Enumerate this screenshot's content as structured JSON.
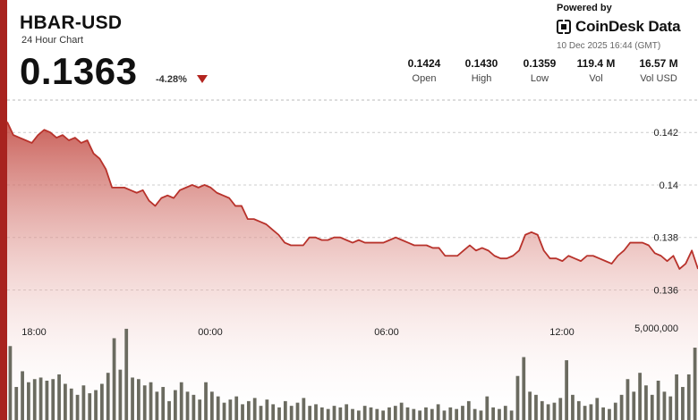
{
  "header": {
    "ticker": "HBAR-USD",
    "subtitle": "24 Hour Chart",
    "price": "0.1363",
    "change": "-4.28%",
    "powered_by": "Powered by",
    "brand": "CoinDesk Data",
    "timestamp": "10 Dec 2025 16:44 (GMT)",
    "accent_color": "#a8231f"
  },
  "stats": [
    {
      "value": "0.1424",
      "label": "Open"
    },
    {
      "value": "0.1430",
      "label": "High"
    },
    {
      "value": "0.1359",
      "label": "Low"
    },
    {
      "value": "119.4 M",
      "label": "Vol"
    },
    {
      "value": "16.57 M",
      "label": "Vol USD"
    }
  ],
  "chart_data": {
    "type": "area",
    "x_ticks": [
      "18:00",
      "00:00",
      "06:00",
      "12:00"
    ],
    "y_ticks": [
      0.142,
      0.14,
      0.138,
      0.136
    ],
    "y_tick_labels": [
      "0.142",
      "0.14",
      "0.138",
      "0.136"
    ],
    "ylim": [
      0.1353,
      0.1433
    ],
    "volume_tick_label": "5,000,000",
    "line_color": "#b8322b",
    "price_series": [
      0.1424,
      0.1419,
      0.1418,
      0.1417,
      0.1416,
      0.1419,
      0.1421,
      0.142,
      0.1418,
      0.1419,
      0.1417,
      0.1418,
      0.1416,
      0.1417,
      0.1412,
      0.141,
      0.1406,
      0.1399,
      0.1399,
      0.1399,
      0.1398,
      0.1397,
      0.1398,
      0.1394,
      0.1392,
      0.1395,
      0.1396,
      0.1395,
      0.1398,
      0.1399,
      0.14,
      0.1399,
      0.14,
      0.1399,
      0.1397,
      0.1396,
      0.1395,
      0.1392,
      0.1392,
      0.1387,
      0.1387,
      0.1386,
      0.1385,
      0.1383,
      0.1381,
      0.1378,
      0.1377,
      0.1377,
      0.1377,
      0.138,
      0.138,
      0.1379,
      0.1379,
      0.138,
      0.138,
      0.1379,
      0.1378,
      0.1379,
      0.1378,
      0.1378,
      0.1378,
      0.1378,
      0.1379,
      0.138,
      0.1379,
      0.1378,
      0.1377,
      0.1377,
      0.1377,
      0.1376,
      0.1376,
      0.1373,
      0.1373,
      0.1373,
      0.1375,
      0.1377,
      0.1375,
      0.1376,
      0.1375,
      0.1373,
      0.1372,
      0.1372,
      0.1373,
      0.1375,
      0.1381,
      0.1382,
      0.1381,
      0.1375,
      0.1372,
      0.1372,
      0.1371,
      0.1373,
      0.1372,
      0.1371,
      0.1373,
      0.1373,
      0.1372,
      0.1371,
      0.137,
      0.1373,
      0.1375,
      0.1378,
      0.1378,
      0.1378,
      0.1377,
      0.1374,
      0.1373,
      0.1371,
      0.1373,
      0.1368,
      0.137,
      0.1375,
      0.1368
    ],
    "volume_series": [
      4700000,
      2100000,
      3100000,
      2400000,
      2600000,
      2700000,
      2500000,
      2600000,
      2900000,
      2300000,
      2000000,
      1600000,
      2200000,
      1700000,
      1900000,
      2300000,
      3000000,
      5200000,
      3200000,
      5800000,
      2700000,
      2600000,
      2200000,
      2400000,
      1800000,
      2100000,
      1200000,
      1900000,
      2400000,
      1800000,
      1600000,
      1300000,
      2400000,
      1800000,
      1500000,
      1100000,
      1300000,
      1500000,
      1000000,
      1200000,
      1400000,
      900000,
      1300000,
      1000000,
      800000,
      1200000,
      900000,
      1100000,
      1400000,
      900000,
      1000000,
      800000,
      700000,
      900000,
      800000,
      1000000,
      700000,
      600000,
      900000,
      800000,
      700000,
      600000,
      800000,
      900000,
      1100000,
      800000,
      700000,
      600000,
      800000,
      700000,
      1000000,
      600000,
      800000,
      700000,
      900000,
      1200000,
      700000,
      600000,
      1500000,
      800000,
      700000,
      900000,
      600000,
      2800000,
      4000000,
      1800000,
      1600000,
      1200000,
      1000000,
      1100000,
      1400000,
      3800000,
      1600000,
      1200000,
      900000,
      1000000,
      1400000,
      800000,
      700000,
      1100000,
      1600000,
      2600000,
      1800000,
      3000000,
      2200000,
      1600000,
      2500000,
      1800000,
      1500000,
      2900000,
      2100000,
      2900000,
      4600000
    ]
  }
}
